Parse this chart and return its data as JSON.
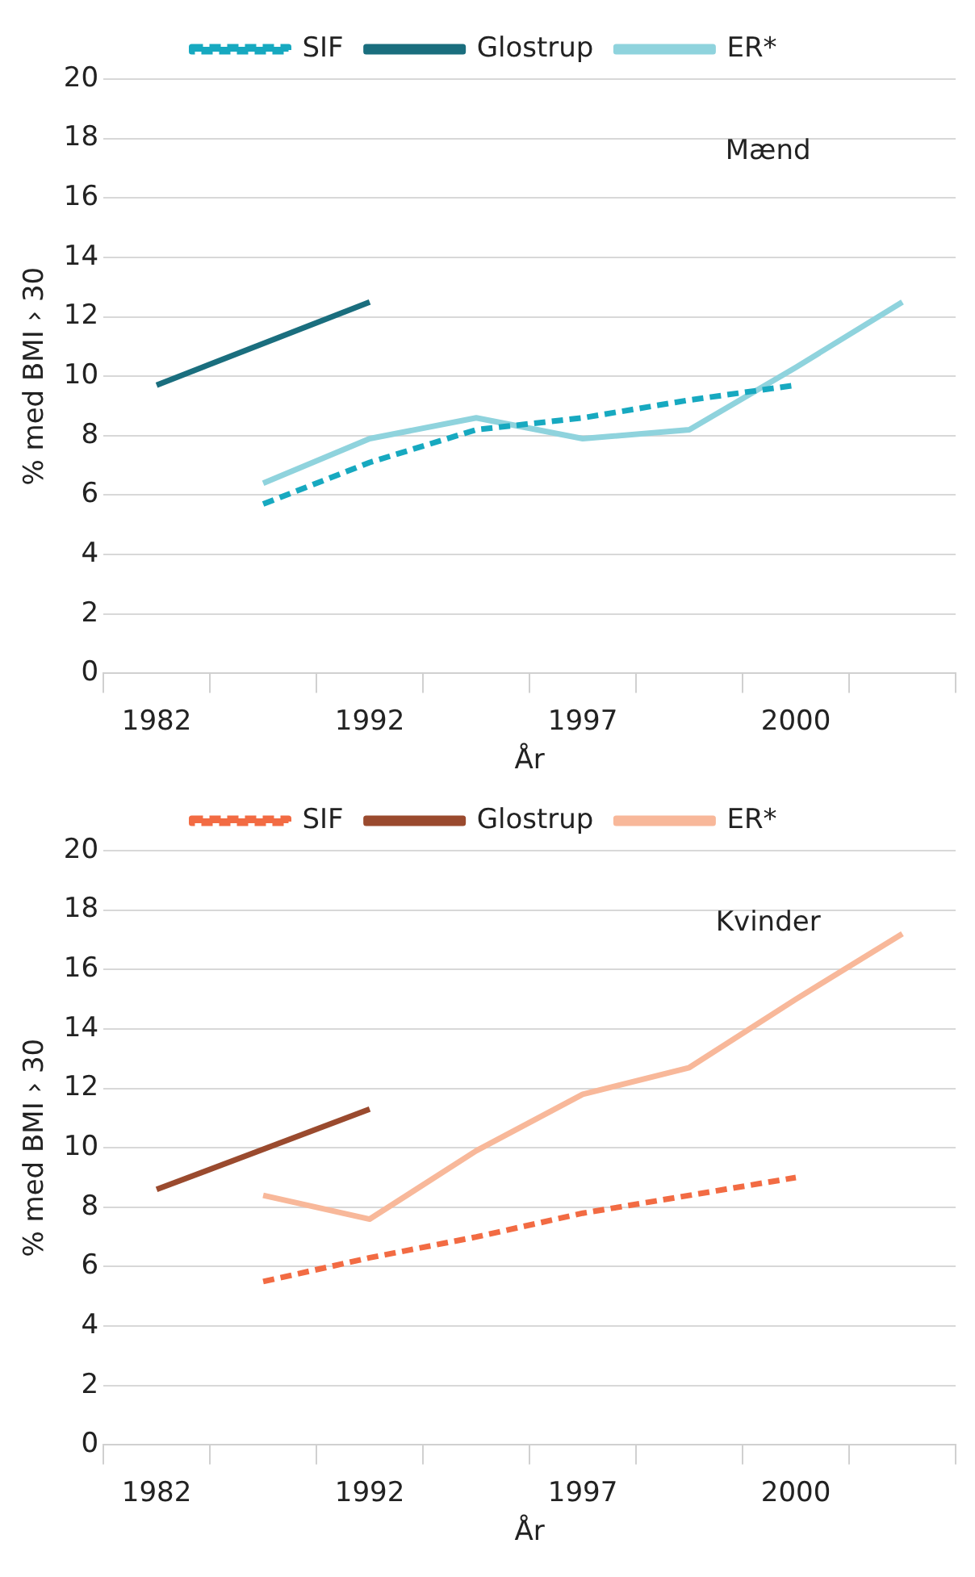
{
  "chart_data": [
    {
      "type": "line",
      "categories": [
        "1982",
        null,
        "1992",
        null,
        "1997",
        null,
        "2000",
        null
      ],
      "xlabel": "År",
      "ylabel": "% med BMI › 30",
      "ylim": [
        0,
        20
      ],
      "yticks": [
        0,
        2,
        4,
        6,
        8,
        10,
        12,
        14,
        16,
        18,
        20
      ],
      "grid": "y",
      "legend": "top",
      "marker": "none",
      "annotations": [
        "Mænd"
      ],
      "series": [
        {
          "name": "SIF",
          "color": "#17a9c0",
          "line_style": "dashed",
          "values": [
            null,
            5.7,
            7.1,
            8.2,
            8.6,
            9.2,
            9.7,
            null
          ]
        },
        {
          "name": "Glostrup",
          "color": "#1a6e7e",
          "line_style": "solid",
          "values": [
            9.7,
            null,
            12.5,
            null,
            null,
            null,
            null,
            null
          ]
        },
        {
          "name": "ER*",
          "color": "#8fd3dd",
          "line_style": "solid",
          "values": [
            null,
            6.4,
            7.9,
            8.6,
            7.9,
            8.2,
            10.3,
            12.5
          ]
        }
      ]
    },
    {
      "type": "line",
      "categories": [
        "1982",
        null,
        "1992",
        null,
        "1997",
        null,
        "2000",
        null
      ],
      "xlabel": "År",
      "ylabel": "% med BMI › 30",
      "ylim": [
        0,
        20
      ],
      "yticks": [
        0,
        2,
        4,
        6,
        8,
        10,
        12,
        14,
        16,
        18,
        20
      ],
      "grid": "y",
      "legend": "top",
      "marker": "none",
      "annotations": [
        "Kvinder"
      ],
      "series": [
        {
          "name": "SIF",
          "color": "#f26b43",
          "line_style": "dashed",
          "values": [
            null,
            5.5,
            6.3,
            7.0,
            7.8,
            8.4,
            9.0,
            null
          ]
        },
        {
          "name": "Glostrup",
          "color": "#9a4a2e",
          "line_style": "solid",
          "values": [
            8.6,
            null,
            11.3,
            null,
            null,
            null,
            null,
            null
          ]
        },
        {
          "name": "ER*",
          "color": "#f8b89a",
          "line_style": "solid",
          "values": [
            null,
            8.4,
            7.6,
            9.9,
            11.8,
            12.7,
            15.0,
            17.2
          ]
        }
      ]
    }
  ]
}
